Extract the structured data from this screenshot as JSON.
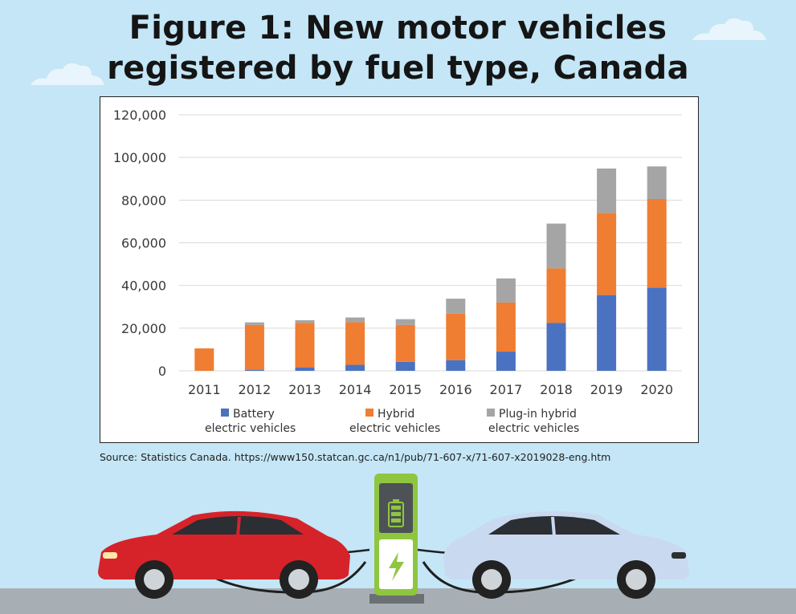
{
  "title_line1": "Figure 1: New motor vehicles",
  "title_line2": "registered by fuel type, Canada",
  "source": "Source: Statistics Canada. https://www150.statcan.gc.ca/n1/pub/71-607-x/71-607-x2019028-eng.htm",
  "colors": {
    "background": "#c4e6f6",
    "battery": "#4a72c0",
    "hybrid": "#ef7d32",
    "plugin": "#a5a5a5",
    "grid": "#d9d9d9"
  },
  "chart_data": {
    "type": "bar",
    "stacked": true,
    "categories": [
      "2011",
      "2012",
      "2013",
      "2014",
      "2015",
      "2016",
      "2017",
      "2018",
      "2019",
      "2020"
    ],
    "series": [
      {
        "name": "Battery electric vehicles",
        "legend_lines": [
          "Battery",
          "electric vehicles"
        ],
        "color": "#4a72c0",
        "values": [
          0,
          500,
          1500,
          2800,
          4200,
          5000,
          9000,
          22500,
          35500,
          39000
        ]
      },
      {
        "name": "Hybrid electric vehicles",
        "legend_lines": [
          "Hybrid",
          "electric vehicles"
        ],
        "color": "#ef7d32",
        "values": [
          10500,
          21000,
          21000,
          20000,
          17300,
          21800,
          23000,
          25500,
          38500,
          41500
        ]
      },
      {
        "name": "Plug-in hybrid electric vehicles",
        "legend_lines": [
          "Plug-in hybrid",
          "electric vehicles"
        ],
        "color": "#a5a5a5",
        "values": [
          0,
          1200,
          1200,
          2200,
          2700,
          7000,
          11300,
          21000,
          20800,
          15300
        ]
      }
    ],
    "y_ticks": [
      "0",
      "20,000",
      "40,000",
      "60,000",
      "80,000",
      "100,000",
      "120,000"
    ],
    "ylim": [
      0,
      120000
    ],
    "grid": true,
    "legend_position": "bottom"
  }
}
